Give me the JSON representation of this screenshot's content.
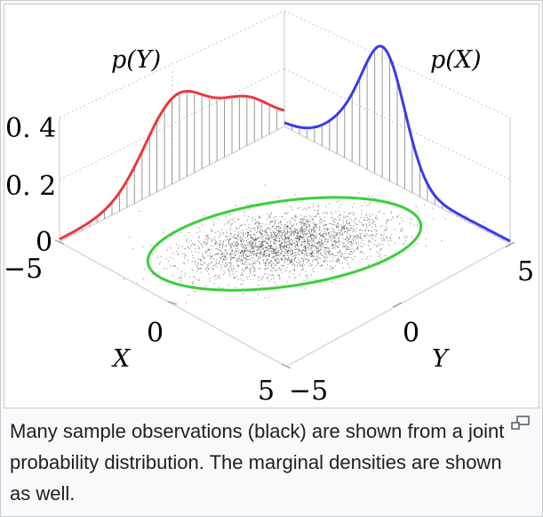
{
  "figure": {
    "caption": "Many sample observations (black) are shown from a joint probability distribution. The marginal densities are shown as well.",
    "enlarge_icon": "magnify-clip-icon"
  },
  "chart_data": {
    "type": "scatter",
    "labels": {
      "p_y": "p(Y)",
      "p_x": "p(X)",
      "x_axis": "X",
      "y_axis": "Y"
    },
    "density_ticks": [
      "0. 4",
      "0. 2",
      "0"
    ],
    "x_ticks": [
      "−5",
      "0",
      "5"
    ],
    "y_ticks": [
      "−5",
      "0",
      "5"
    ],
    "colors": {
      "p_y_curve": "#e8393c",
      "p_x_curve": "#3b3be8",
      "ellipse": "#3ccf3c",
      "samples": "#000000",
      "stems": "#999999",
      "axes": "#cccccc"
    },
    "density_range": [
      0,
      0.4
    ],
    "x_range": [
      -5,
      5
    ],
    "y_range": [
      -5,
      5
    ]
  }
}
